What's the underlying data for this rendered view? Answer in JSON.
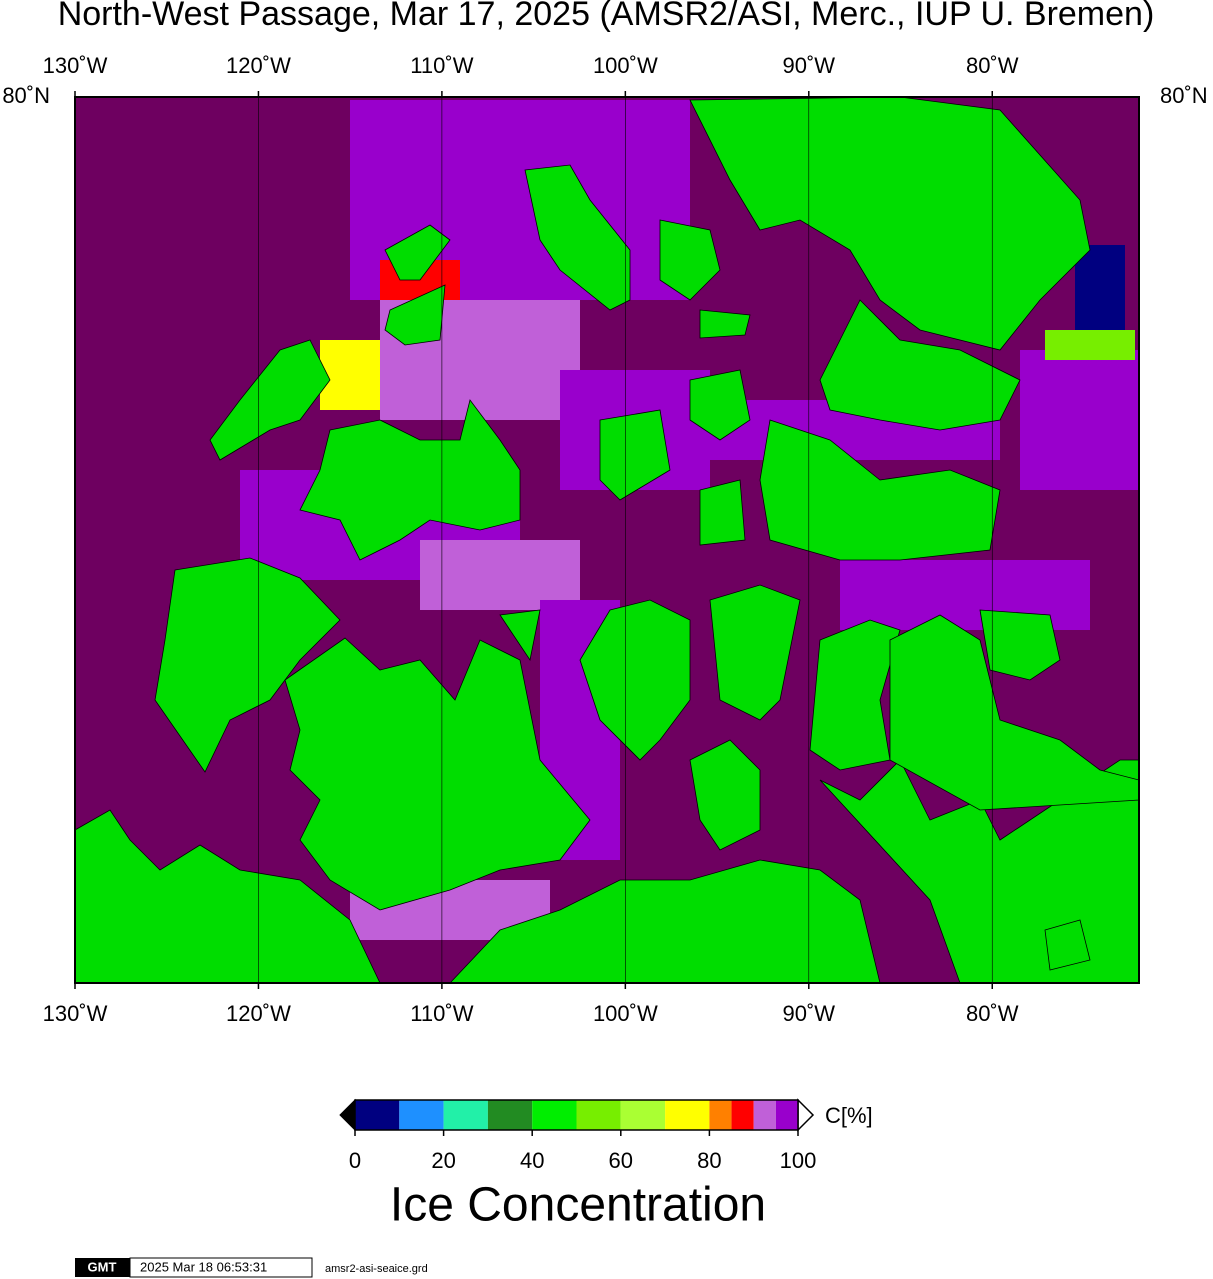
{
  "title": "North-West Passage, Mar 17, 2025 (AMSR2/ASI, Merc., IUP U. Bremen)",
  "map": {
    "xlim": [
      -130,
      -72
    ],
    "xticks": [
      {
        "value": -130,
        "label": "130˚W"
      },
      {
        "value": -120,
        "label": "120˚W"
      },
      {
        "value": -110,
        "label": "110˚W"
      },
      {
        "value": -100,
        "label": "100˚W"
      },
      {
        "value": -90,
        "label": "90˚W"
      },
      {
        "value": -80,
        "label": "80˚W"
      }
    ],
    "ytick": {
      "value": 80,
      "label": "80˚N"
    }
  },
  "colorbar": {
    "bins": [
      0,
      10,
      20,
      30,
      40,
      50,
      60,
      70,
      80,
      85,
      90,
      95,
      100
    ],
    "colors": [
      "#000080",
      "#1e90ff",
      "#22f0a8",
      "#228b22",
      "#00ee00",
      "#77ee00",
      "#aaff33",
      "#ffff00",
      "#ff8000",
      "#ff0000",
      "#c060d8",
      "#9900cc"
    ],
    "ticks": [
      0,
      20,
      40,
      60,
      80,
      100
    ],
    "unit": "C[%]",
    "label": "Ice Concentration"
  },
  "footer": {
    "logo": "GMT",
    "timestamp": "2025 Mar 18 06:53:31",
    "file": "amsr2-asi-seaice.grd"
  }
}
